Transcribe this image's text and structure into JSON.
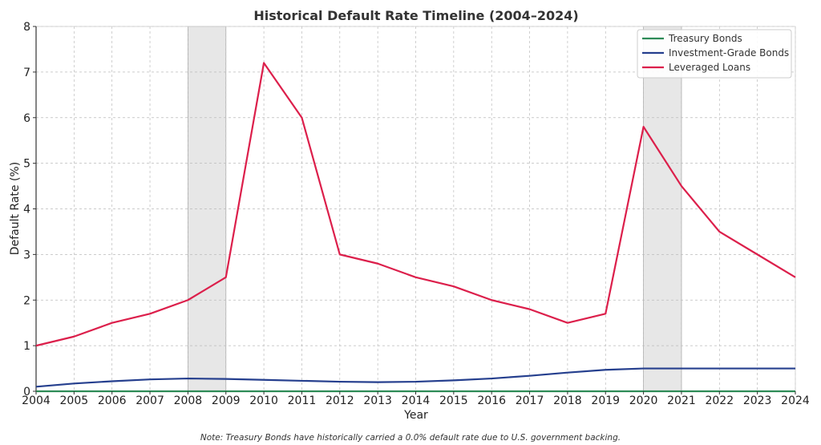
{
  "chart_data": {
    "type": "line",
    "title": "Historical Default Rate Timeline (2004–2024)",
    "xlabel": "Year",
    "ylabel": "Default Rate (%)",
    "x": [
      2004,
      2005,
      2006,
      2007,
      2008,
      2009,
      2010,
      2011,
      2012,
      2013,
      2014,
      2015,
      2016,
      2017,
      2018,
      2019,
      2020,
      2021,
      2022,
      2023,
      2024
    ],
    "xlim": [
      2004,
      2024
    ],
    "ylim": [
      0,
      8
    ],
    "yticks": [
      0,
      1,
      2,
      3,
      4,
      5,
      6,
      7,
      8
    ],
    "grid": true,
    "legend_position": "top-right",
    "shaded_periods": [
      [
        2008,
        2009
      ],
      [
        2020,
        2021
      ]
    ],
    "series": [
      {
        "name": "Treasury Bonds",
        "color": "#2e8b57",
        "values": [
          0,
          0,
          0,
          0,
          0,
          0,
          0,
          0,
          0,
          0,
          0,
          0,
          0,
          0,
          0,
          0,
          0,
          0,
          0,
          0,
          0
        ]
      },
      {
        "name": "Investment-Grade Bonds",
        "color": "#253f8e",
        "values": [
          0.1,
          0.17,
          0.22,
          0.26,
          0.28,
          0.27,
          0.25,
          0.23,
          0.21,
          0.2,
          0.21,
          0.24,
          0.28,
          0.34,
          0.41,
          0.47,
          0.5,
          0.5,
          0.5,
          0.5,
          0.5
        ]
      },
      {
        "name": "Leveraged Loans",
        "color": "#dc1f4b",
        "values": [
          1.0,
          1.2,
          1.5,
          1.7,
          2.0,
          2.5,
          7.2,
          6.0,
          3.0,
          2.8,
          2.5,
          2.3,
          2.0,
          1.8,
          1.5,
          1.7,
          5.8,
          4.5,
          3.5,
          3.0,
          2.5
        ]
      }
    ],
    "note": "Note: Treasury Bonds have historically carried a 0.0% default rate due to U.S. government backing."
  }
}
